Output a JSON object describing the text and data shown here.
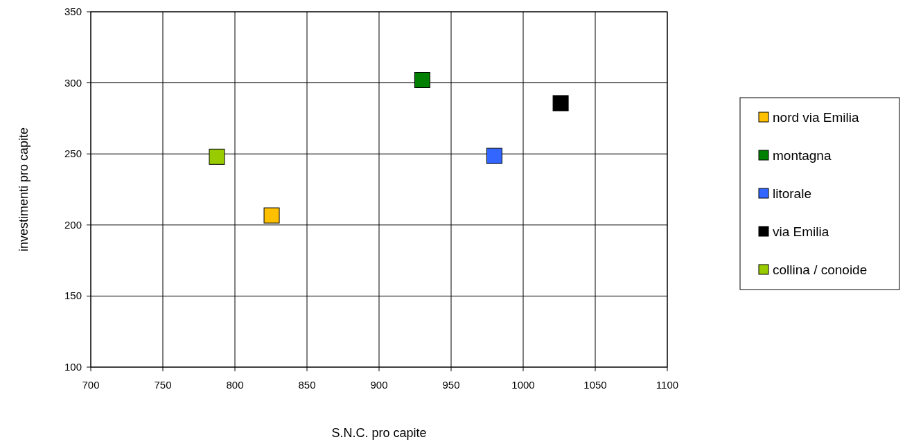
{
  "chart_data": {
    "type": "scatter",
    "xlabel": "S.N.C. pro capite",
    "ylabel": "investimenti pro capite",
    "series": [
      {
        "name": "nord via Emilia",
        "color": "#ffc000",
        "x": [
          825.5
        ],
        "values": [
          206.7
        ]
      },
      {
        "name": "montagna",
        "color": "#008000",
        "x": [
          930
        ],
        "values": [
          302
        ]
      },
      {
        "name": "litorale",
        "color": "#3366ff",
        "x": [
          980
        ],
        "values": [
          248.6
        ]
      },
      {
        "name": "via Emilia",
        "color": "#000000",
        "x": [
          1026
        ],
        "values": [
          285.7
        ]
      },
      {
        "name": "collina / conoide",
        "color": "#99cc00",
        "x": [
          787.5
        ],
        "values": [
          248
        ]
      }
    ],
    "xlim": [
      700,
      1100
    ],
    "xticks": [
      700,
      750,
      800,
      850,
      900,
      950,
      1000,
      1050,
      1100
    ],
    "ylim": [
      100,
      350
    ],
    "yticks": [
      100,
      150,
      200,
      250,
      300,
      350
    ],
    "grid": true,
    "legend": "right",
    "marker": "square"
  }
}
